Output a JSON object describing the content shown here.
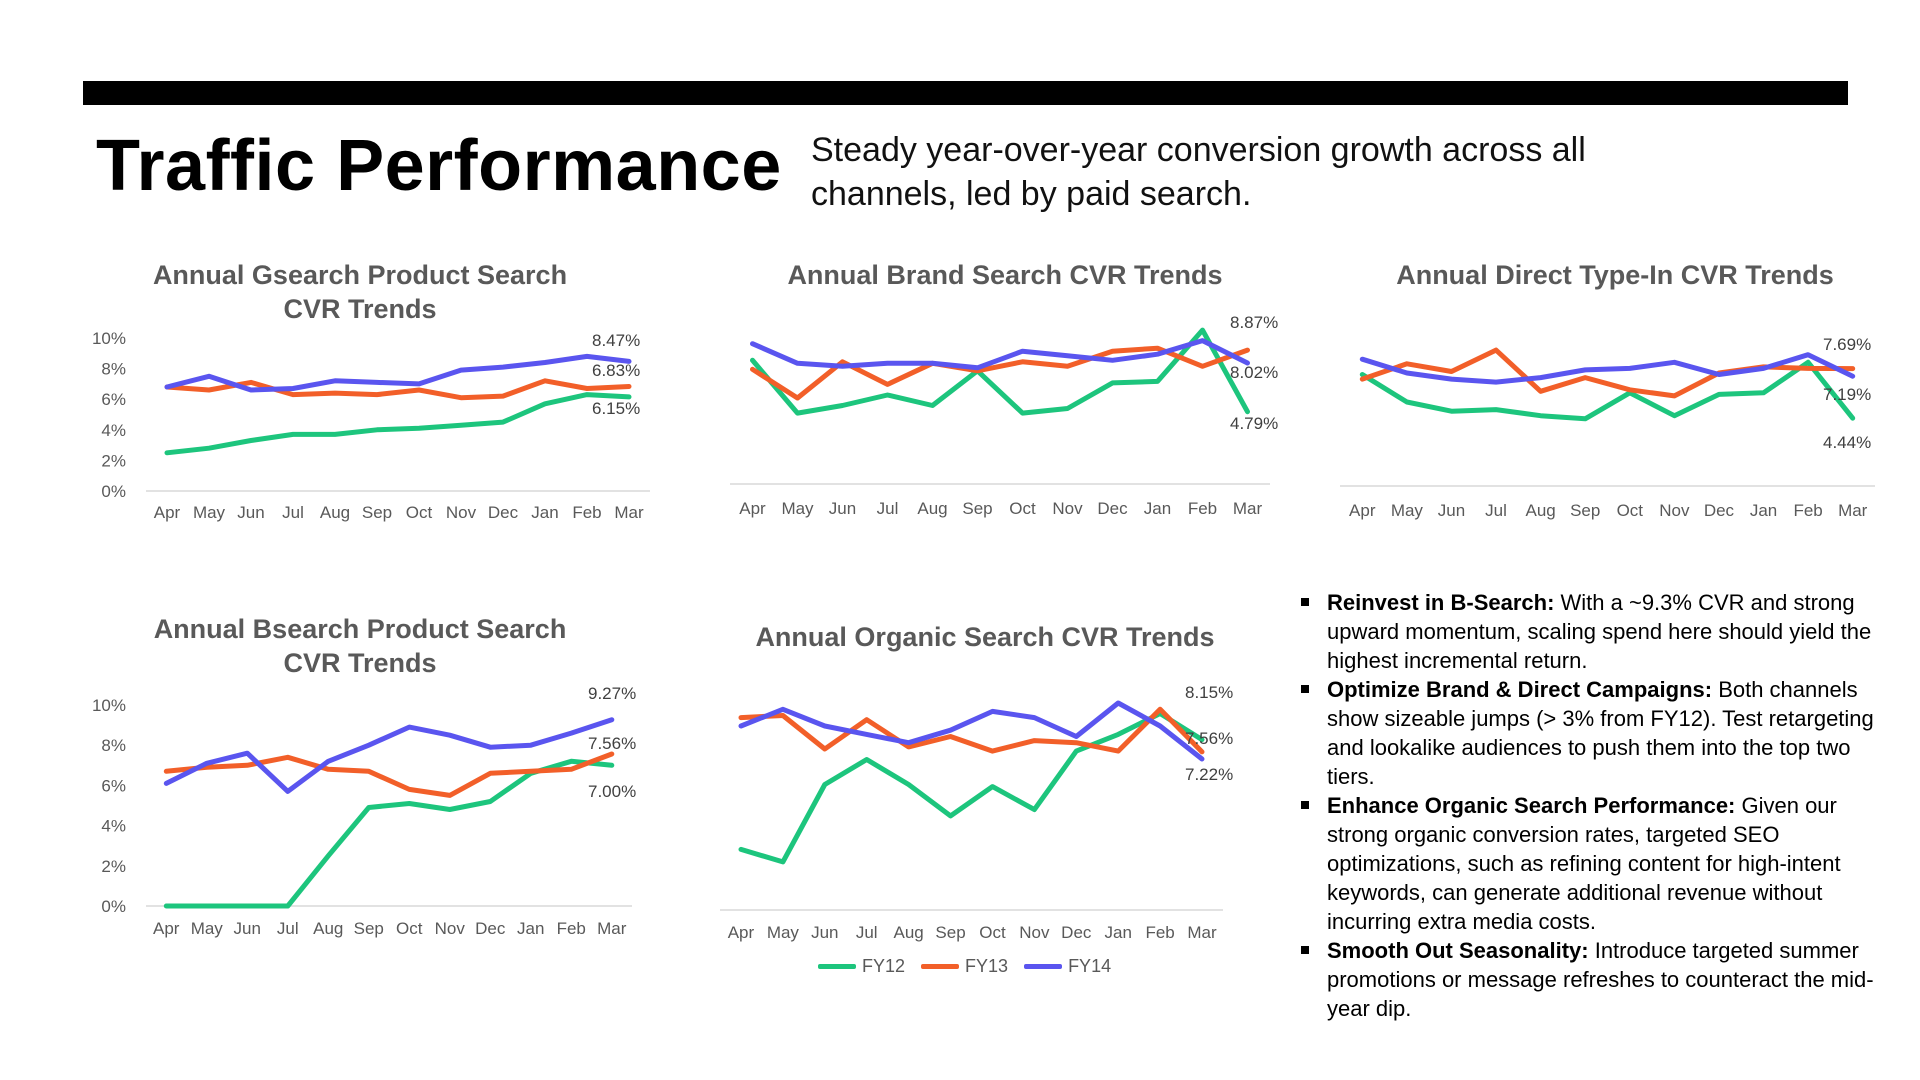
{
  "header": {
    "title": "Traffic Performance",
    "subtitle": "Steady year-over-year conversion growth across all channels, led by paid search."
  },
  "colors": {
    "FY12": "#1DC57D",
    "FY13": "#F25F29",
    "FY14": "#5A55EF"
  },
  "legend": [
    "FY12",
    "FY13",
    "FY14"
  ],
  "chart_data": [
    {
      "id": "gsearch",
      "type": "line",
      "title_lines": [
        "Annual Gsearch Product Search",
        "CVR Trends"
      ],
      "categories": [
        "Apr",
        "May",
        "Jun",
        "Jul",
        "Aug",
        "Sep",
        "Oct",
        "Nov",
        "Dec",
        "Jan",
        "Feb",
        "Mar"
      ],
      "ylim": [
        0,
        10
      ],
      "yticks": [
        "0%",
        "2%",
        "4%",
        "6%",
        "8%",
        "10%"
      ],
      "show_yaxis": true,
      "series": [
        {
          "name": "FY12",
          "values": [
            2.5,
            2.8,
            3.3,
            3.7,
            3.7,
            4.0,
            4.1,
            4.3,
            4.5,
            5.7,
            6.3,
            6.15
          ]
        },
        {
          "name": "FY13",
          "values": [
            6.8,
            6.6,
            7.1,
            6.3,
            6.4,
            6.3,
            6.6,
            6.1,
            6.2,
            7.2,
            6.7,
            6.83
          ]
        },
        {
          "name": "FY14",
          "values": [
            6.8,
            7.5,
            6.6,
            6.7,
            7.2,
            7.1,
            7.0,
            7.9,
            8.1,
            8.4,
            8.8,
            8.47
          ]
        }
      ],
      "labels": [
        {
          "text": "8.47%",
          "series": "FY14"
        },
        {
          "text": "6.83%",
          "series": "FY13"
        },
        {
          "text": "6.15%",
          "series": "FY12"
        }
      ]
    },
    {
      "id": "brand",
      "type": "line",
      "title_lines": [
        "Annual Brand Search CVR Trends"
      ],
      "categories": [
        "Apr",
        "May",
        "Jun",
        "Jul",
        "Aug",
        "Sep",
        "Oct",
        "Nov",
        "Dec",
        "Jan",
        "Feb",
        "Mar"
      ],
      "ylim": [
        0,
        11
      ],
      "show_yaxis": false,
      "series": [
        {
          "name": "FY12",
          "values": [
            8.2,
            4.7,
            5.2,
            5.9,
            5.2,
            7.5,
            4.7,
            5.0,
            6.7,
            6.8,
            10.2,
            4.79
          ]
        },
        {
          "name": "FY13",
          "values": [
            7.6,
            5.7,
            8.1,
            6.6,
            8.0,
            7.5,
            8.1,
            7.8,
            8.8,
            9.0,
            7.8,
            8.87
          ]
        },
        {
          "name": "FY14",
          "values": [
            9.3,
            8.0,
            7.8,
            8.0,
            8.0,
            7.7,
            8.8,
            8.5,
            8.2,
            8.6,
            9.5,
            8.02
          ]
        }
      ],
      "labels": [
        {
          "text": "8.87%",
          "series": "FY13"
        },
        {
          "text": "8.02%",
          "series": "FY14"
        },
        {
          "text": "4.79%",
          "series": "FY12"
        }
      ]
    },
    {
      "id": "direct",
      "type": "line",
      "title_lines": [
        "Annual Direct Type-In CVR Trends"
      ],
      "categories": [
        "Apr",
        "May",
        "Jun",
        "Jul",
        "Aug",
        "Sep",
        "Oct",
        "Nov",
        "Dec",
        "Jan",
        "Feb",
        "Mar"
      ],
      "ylim": [
        0,
        11
      ],
      "show_yaxis": false,
      "series": [
        {
          "name": "FY12",
          "values": [
            7.3,
            5.5,
            4.9,
            5.0,
            4.6,
            4.4,
            6.1,
            4.6,
            6.0,
            6.1,
            8.1,
            4.44
          ]
        },
        {
          "name": "FY13",
          "values": [
            7.0,
            8.0,
            7.5,
            8.9,
            6.2,
            7.1,
            6.3,
            5.9,
            7.4,
            7.8,
            7.7,
            7.69
          ]
        },
        {
          "name": "FY14",
          "values": [
            8.3,
            7.4,
            7.0,
            6.8,
            7.1,
            7.6,
            7.7,
            8.1,
            7.3,
            7.7,
            8.6,
            7.19
          ]
        }
      ],
      "labels": [
        {
          "text": "7.69%",
          "series": "FY13"
        },
        {
          "text": "7.19%",
          "series": "FY14"
        },
        {
          "text": "4.44%",
          "series": "FY12"
        }
      ]
    },
    {
      "id": "bsearch",
      "type": "line",
      "title_lines": [
        "Annual Bsearch Product Search",
        "CVR Trends"
      ],
      "categories": [
        "Apr",
        "May",
        "Jun",
        "Jul",
        "Aug",
        "Sep",
        "Oct",
        "Nov",
        "Dec",
        "Jan",
        "Feb",
        "Mar"
      ],
      "ylim": [
        0,
        10
      ],
      "yticks": [
        "0%",
        "2%",
        "4%",
        "6%",
        "8%",
        "10%"
      ],
      "show_yaxis": true,
      "series": [
        {
          "name": "FY12",
          "values": [
            0,
            0,
            0,
            0,
            2.5,
            4.9,
            5.1,
            4.8,
            5.2,
            6.6,
            7.2,
            7.0
          ]
        },
        {
          "name": "FY13",
          "values": [
            6.7,
            6.9,
            7.0,
            7.4,
            6.8,
            6.7,
            5.8,
            5.5,
            6.6,
            6.7,
            6.8,
            7.56
          ]
        },
        {
          "name": "FY14",
          "values": [
            6.1,
            7.1,
            7.6,
            5.7,
            7.2,
            8.0,
            8.9,
            8.5,
            7.9,
            8.0,
            8.6,
            9.27
          ]
        }
      ],
      "labels": [
        {
          "text": "9.27%",
          "series": "FY14"
        },
        {
          "text": "7.56%",
          "series": "FY13"
        },
        {
          "text": "7.00%",
          "series": "FY12"
        }
      ]
    },
    {
      "id": "organic",
      "type": "line",
      "title_lines": [
        "Annual Organic Search CVR Trends"
      ],
      "categories": [
        "Apr",
        "May",
        "Jun",
        "Jul",
        "Aug",
        "Sep",
        "Oct",
        "Nov",
        "Dec",
        "Jan",
        "Feb",
        "Mar"
      ],
      "ylim": [
        0,
        11
      ],
      "show_yaxis": false,
      "series": [
        {
          "name": "FY12",
          "values": [
            2.9,
            2.3,
            6.0,
            7.2,
            6.0,
            4.5,
            5.9,
            4.8,
            7.6,
            8.4,
            9.4,
            8.15
          ]
        },
        {
          "name": "FY13",
          "values": [
            9.2,
            9.3,
            7.7,
            9.1,
            7.8,
            8.3,
            7.6,
            8.1,
            8.0,
            7.6,
            9.6,
            7.56
          ]
        },
        {
          "name": "FY14",
          "values": [
            8.8,
            9.6,
            8.8,
            8.4,
            8.0,
            8.6,
            9.5,
            9.2,
            8.3,
            9.9,
            8.8,
            7.22
          ]
        }
      ],
      "labels": [
        {
          "text": "8.15%",
          "series": "FY12"
        },
        {
          "text": "7.56%",
          "series": "FY13"
        },
        {
          "text": "7.22%",
          "series": "FY14"
        }
      ]
    }
  ],
  "insights": [
    {
      "heading": "Reinvest in B-Search:",
      "body": " With a ~9.3% CVR and strong upward momentum, scaling spend here should yield the highest incremental return."
    },
    {
      "heading": "Optimize Brand & Direct Campaigns:",
      "body": " Both channels show sizeable jumps (> 3% from FY12). Test retargeting and lookalike audiences to push them into the top two tiers."
    },
    {
      "heading": "Enhance Organic Search Performance:",
      "body": " Given our strong organic conversion rates, targeted SEO optimizations, such as refining content for high-intent keywords, can generate additional revenue without incurring extra media costs."
    },
    {
      "heading": "Smooth Out Seasonality:",
      "body": " Introduce targeted summer promotions or message refreshes to counteract the mid-year dip."
    }
  ]
}
